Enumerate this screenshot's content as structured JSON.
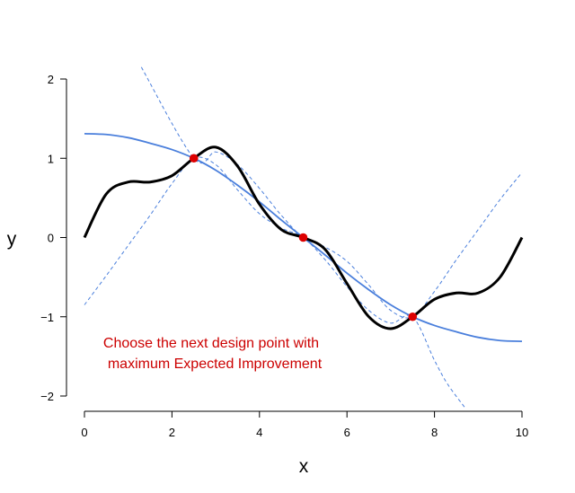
{
  "chart_data": {
    "type": "line",
    "title": "",
    "xlabel": "x",
    "ylabel": "y",
    "xlim": [
      0,
      10
    ],
    "ylim": [
      -2,
      2
    ],
    "x_ticks": [
      0,
      2,
      4,
      6,
      8,
      10
    ],
    "y_ticks": [
      -2,
      -1,
      0,
      1,
      2
    ],
    "grid": false,
    "legend": "none",
    "series": [
      {
        "style": "solid-black-thick",
        "color": "#000000",
        "x": [
          0,
          0.5,
          1.0,
          1.5,
          2.0,
          2.5,
          3.0,
          3.5,
          4.0,
          4.5,
          5.0,
          5.5,
          6.0,
          6.5,
          7.0,
          7.5,
          8.0,
          8.5,
          9.0,
          9.5,
          10.0
        ],
        "y": [
          0,
          0.55,
          0.7,
          0.7,
          0.78,
          1.0,
          1.14,
          0.9,
          0.42,
          0.1,
          0,
          -0.15,
          -0.58,
          -1.0,
          -1.15,
          -1.0,
          -0.78,
          -0.7,
          -0.7,
          -0.5,
          0
        ]
      },
      {
        "style": "solid-blue",
        "color": "#4a7fdc",
        "x": [
          0,
          0.5,
          1.0,
          1.5,
          2.0,
          2.5,
          3.0,
          3.5,
          4.0,
          4.5,
          5.0,
          5.5,
          6.0,
          6.5,
          7.0,
          7.5,
          8.0,
          8.5,
          9.0,
          9.5,
          10.0
        ],
        "y": [
          1.31,
          1.3,
          1.26,
          1.19,
          1.11,
          1.0,
          0.85,
          0.66,
          0.45,
          0.22,
          0,
          -0.22,
          -0.45,
          -0.66,
          -0.85,
          -1.0,
          -1.11,
          -1.19,
          -1.26,
          -1.3,
          -1.31
        ]
      },
      {
        "style": "dashed-blue-upper",
        "color": "#4a7fdc",
        "x": [
          1.3,
          2.5,
          3.0,
          3.5,
          4.0,
          4.5,
          5.0,
          5.5,
          6.0,
          6.5,
          7.0,
          7.5,
          8.0,
          8.5,
          9.0,
          9.5,
          10.0
        ],
        "y": [
          2.15,
          1.0,
          1.08,
          0.92,
          0.62,
          0.28,
          0,
          -0.12,
          -0.3,
          -0.6,
          -0.92,
          -1.0,
          -0.68,
          -0.28,
          0.1,
          0.48,
          0.82
        ]
      },
      {
        "style": "dashed-blue-lower",
        "color": "#4a7fdc",
        "x": [
          0,
          0.5,
          1.0,
          1.5,
          2.0,
          2.5,
          3.0,
          3.5,
          4.0,
          4.5,
          5.0,
          5.5,
          6.0,
          6.5,
          7.0,
          7.5,
          8.0,
          8.3,
          8.7
        ],
        "y": [
          -0.85,
          -0.48,
          -0.1,
          0.28,
          0.68,
          1.0,
          0.92,
          0.6,
          0.3,
          0.12,
          0,
          -0.28,
          -0.62,
          -0.92,
          -1.08,
          -1.0,
          -1.55,
          -1.85,
          -2.15
        ]
      }
    ],
    "points": {
      "color": "#dd0000",
      "x": [
        2.5,
        5.0,
        7.5
      ],
      "y": [
        1.0,
        0.0,
        -1.0
      ]
    },
    "annotation": {
      "lines": [
        "Choose the next design point with",
        "maximum Expected Improvement"
      ],
      "color": "#cc0000"
    }
  }
}
